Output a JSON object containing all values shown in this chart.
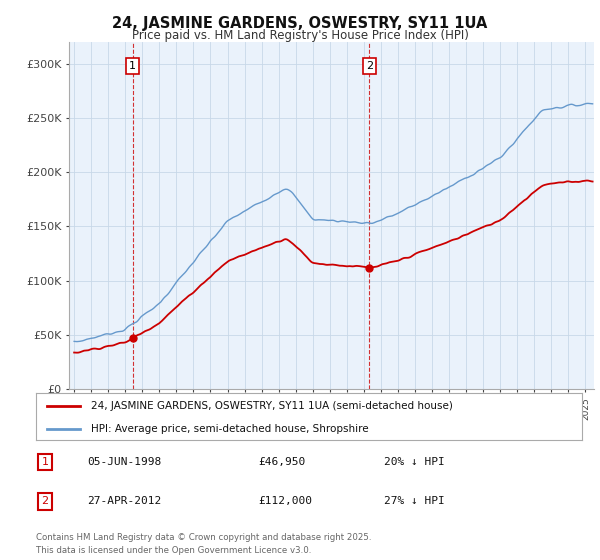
{
  "title": "24, JASMINE GARDENS, OSWESTRY, SY11 1UA",
  "subtitle": "Price paid vs. HM Land Registry's House Price Index (HPI)",
  "ylim": [
    0,
    320000
  ],
  "yticks": [
    0,
    50000,
    100000,
    150000,
    200000,
    250000,
    300000
  ],
  "ytick_labels": [
    "£0",
    "£50K",
    "£100K",
    "£150K",
    "£200K",
    "£250K",
    "£300K"
  ],
  "hpi_color": "#6699cc",
  "price_color": "#cc0000",
  "legend_label_price": "24, JASMINE GARDENS, OSWESTRY, SY11 1UA (semi-detached house)",
  "legend_label_hpi": "HPI: Average price, semi-detached house, Shropshire",
  "transaction1_date": "05-JUN-1998",
  "transaction1_price": "£46,950",
  "transaction1_hpi": "20% ↓ HPI",
  "transaction2_date": "27-APR-2012",
  "transaction2_price": "£112,000",
  "transaction2_hpi": "27% ↓ HPI",
  "footnote": "Contains HM Land Registry data © Crown copyright and database right 2025.\nThis data is licensed under the Open Government Licence v3.0.",
  "background_color": "#ffffff",
  "plot_bg_color": "#eaf2fb",
  "grid_color": "#c8d8e8",
  "marker1_x": 1998.43,
  "marker1_y": 46950,
  "marker2_x": 2012.32,
  "marker2_y": 112000,
  "xmin": 1995,
  "xmax": 2025
}
